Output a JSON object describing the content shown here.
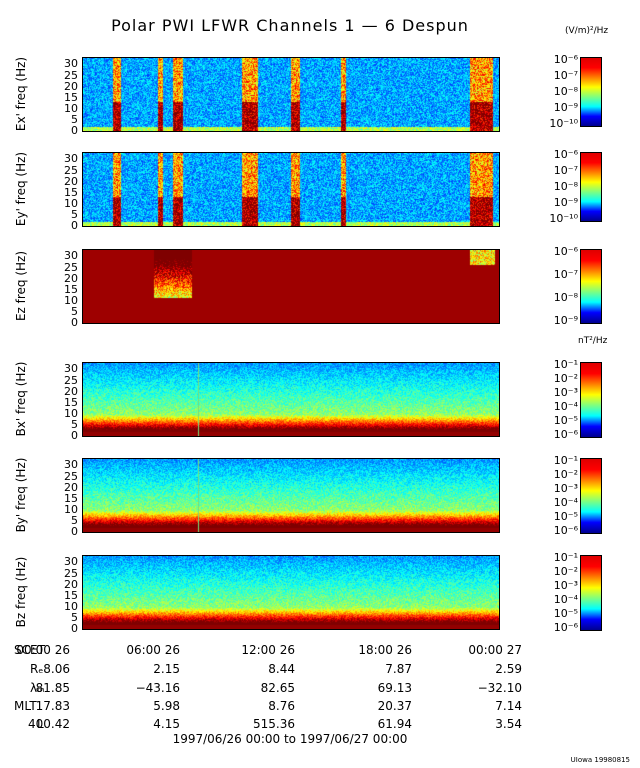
{
  "title": "Polar PWI LFWR Channels 1 — 6 Despun",
  "units": {
    "electric": "(V/m)²/Hz",
    "magnetic": "nT²/Hz"
  },
  "chart_data": [
    {
      "type": "heatmap",
      "ylabel": "Ex' freq (Hz)",
      "ylim": [
        0,
        32
      ],
      "yticks": [
        "30",
        "25",
        "20",
        "15",
        "10",
        "5",
        "0"
      ],
      "colorbar": {
        "ticks": [
          "10⁻⁶",
          "10⁻⁷",
          "10⁻⁸",
          "10⁻⁹",
          "10⁻¹⁰"
        ],
        "range_log10": [
          -10,
          -6
        ]
      }
    },
    {
      "type": "heatmap",
      "ylabel": "Ey' freq (Hz)",
      "ylim": [
        0,
        32
      ],
      "yticks": [
        "30",
        "25",
        "20",
        "15",
        "10",
        "5",
        "0"
      ],
      "colorbar": {
        "ticks": [
          "10⁻⁶",
          "10⁻⁷",
          "10⁻⁸",
          "10⁻⁹",
          "10⁻¹⁰"
        ],
        "range_log10": [
          -10,
          -6
        ]
      }
    },
    {
      "type": "heatmap",
      "ylabel": "Ez freq (Hz)",
      "ylim": [
        0,
        32
      ],
      "yticks": [
        "30",
        "25",
        "20",
        "15",
        "10",
        "5",
        "0"
      ],
      "colorbar": {
        "ticks": [
          "10⁻⁶",
          "10⁻⁷",
          "10⁻⁸",
          "10⁻⁹"
        ],
        "range_log10": [
          -9,
          -6
        ]
      }
    },
    {
      "type": "heatmap",
      "ylabel": "Bx' freq (Hz)",
      "ylim": [
        0,
        32
      ],
      "yticks": [
        "30",
        "25",
        "20",
        "15",
        "10",
        "5",
        "0"
      ],
      "colorbar": {
        "ticks": [
          "10⁻¹",
          "10⁻²",
          "10⁻³",
          "10⁻⁴",
          "10⁻⁵",
          "10⁻⁶"
        ],
        "range_log10": [
          -6,
          -1
        ]
      }
    },
    {
      "type": "heatmap",
      "ylabel": "By' freq (Hz)",
      "ylim": [
        0,
        32
      ],
      "yticks": [
        "30",
        "25",
        "20",
        "15",
        "10",
        "5",
        "0"
      ],
      "colorbar": {
        "ticks": [
          "10⁻¹",
          "10⁻²",
          "10⁻³",
          "10⁻⁴",
          "10⁻⁵",
          "10⁻⁶"
        ],
        "range_log10": [
          -6,
          -1
        ]
      }
    },
    {
      "type": "heatmap",
      "ylabel": "Bz freq (Hz)",
      "ylim": [
        0,
        32
      ],
      "yticks": [
        "30",
        "25",
        "20",
        "15",
        "10",
        "5",
        "0"
      ],
      "colorbar": {
        "ticks": [
          "10⁻¹",
          "10⁻²",
          "10⁻³",
          "10⁻⁴",
          "10⁻⁵",
          "10⁻⁶"
        ],
        "range_log10": [
          -6,
          -1
        ]
      }
    }
  ],
  "ephemeris": {
    "row_labels": [
      "SCET",
      "Rₑ",
      "λₘ",
      "MLT",
      "L"
    ],
    "times": [
      "00:00 26",
      "06:00 26",
      "12:00 26",
      "18:00 26",
      "00:00 27"
    ],
    "R_E": [
      "8.06",
      "2.15",
      "8.44",
      "7.87",
      "2.59"
    ],
    "lambda_m": [
      "81.85",
      "−43.16",
      "82.65",
      "69.13",
      "−32.10"
    ],
    "MLT": [
      "17.83",
      "5.98",
      "8.76",
      "20.37",
      "7.14"
    ],
    "L": [
      "400.42",
      "4.15",
      "515.36",
      "61.94",
      "3.54"
    ]
  },
  "date_range": "1997/06/26 00:00 to 1997/06/27 00:00",
  "credit": "UIowa 19980815"
}
